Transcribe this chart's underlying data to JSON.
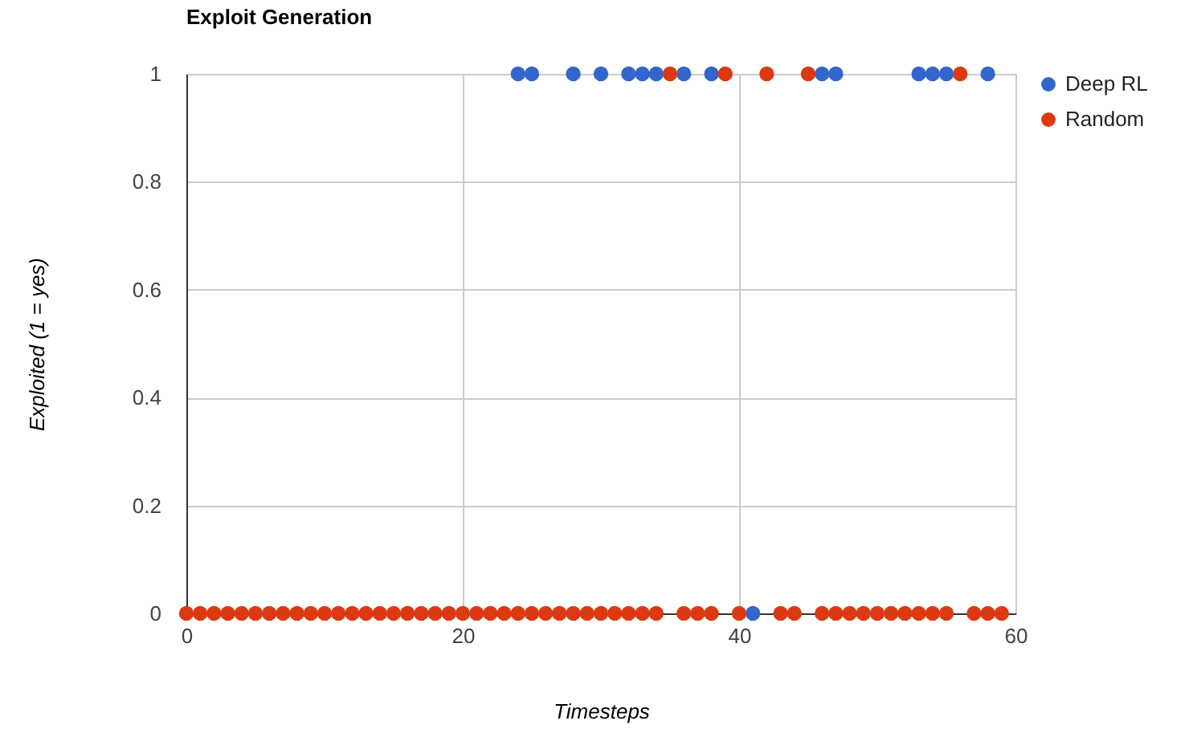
{
  "chart_data": {
    "type": "scatter",
    "title": "Exploit Generation",
    "xlabel": "Timesteps",
    "ylabel": "Exploited (1 = yes)",
    "x": [
      0,
      1,
      2,
      3,
      4,
      5,
      6,
      7,
      8,
      9,
      10,
      11,
      12,
      13,
      14,
      15,
      16,
      17,
      18,
      19,
      20,
      21,
      22,
      23,
      24,
      25,
      26,
      27,
      28,
      29,
      30,
      31,
      32,
      33,
      34,
      35,
      36,
      37,
      38,
      39,
      40,
      41,
      42,
      43,
      44,
      45,
      46,
      47,
      48,
      49,
      50,
      51,
      52,
      53,
      54,
      55,
      56,
      57,
      58,
      59
    ],
    "series": [
      {
        "name": "Deep RL",
        "color": "#3366cc",
        "values": [
          null,
          null,
          null,
          null,
          null,
          null,
          null,
          null,
          null,
          null,
          null,
          null,
          null,
          null,
          null,
          null,
          null,
          null,
          null,
          null,
          null,
          null,
          null,
          null,
          1,
          1,
          null,
          null,
          1,
          null,
          1,
          null,
          1,
          1,
          1,
          null,
          1,
          null,
          1,
          null,
          null,
          0,
          null,
          null,
          null,
          null,
          1,
          1,
          null,
          null,
          null,
          null,
          null,
          1,
          1,
          1,
          null,
          null,
          1,
          null
        ]
      },
      {
        "name": "Random",
        "color": "#dc3912",
        "values": [
          0,
          0,
          0,
          0,
          0,
          0,
          0,
          0,
          0,
          0,
          0,
          0,
          0,
          0,
          0,
          0,
          0,
          0,
          0,
          0,
          0,
          0,
          0,
          0,
          0,
          0,
          0,
          0,
          0,
          0,
          0,
          0,
          0,
          0,
          0,
          1,
          0,
          0,
          0,
          1,
          0,
          null,
          1,
          0,
          0,
          1,
          0,
          0,
          0,
          0,
          0,
          0,
          0,
          0,
          0,
          0,
          1,
          0,
          0,
          0
        ]
      }
    ],
    "xlim": [
      0,
      60
    ],
    "xticks": [
      0,
      20,
      40,
      60
    ],
    "ylim": [
      0,
      1
    ],
    "yticks": [
      0,
      0.2,
      0.4,
      0.6,
      0.8,
      1
    ],
    "grid": true,
    "legend": "top right",
    "marker": "circle"
  }
}
